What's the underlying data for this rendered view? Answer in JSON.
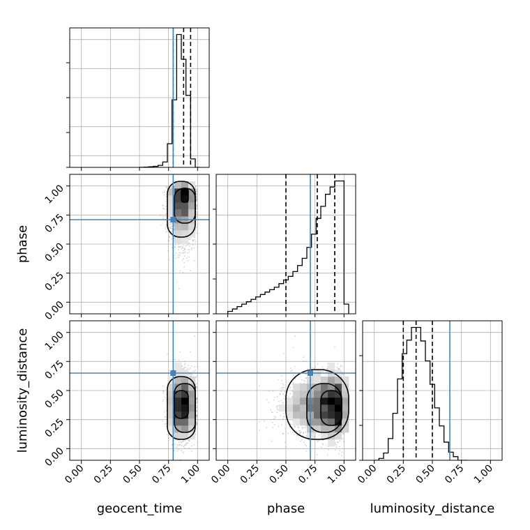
{
  "chart_data": {
    "type": "corner",
    "parameters": [
      "geocent_time",
      "phase",
      "luminosity_distance"
    ],
    "tick_labels": [
      "0.00",
      "0.25",
      "0.50",
      "0.75",
      "1.00"
    ],
    "xlim": [
      -0.1,
      1.1
    ],
    "ylim": [
      -0.1,
      1.1
    ],
    "grid": true,
    "colors": {
      "truth": "#4682b4",
      "hist": "#000000",
      "samples": "#9a9a9a",
      "quantile": "#000000"
    },
    "truths": {
      "geocent_time": 0.79,
      "phase": 0.71,
      "luminosity_distance": 0.65
    },
    "quantiles": {
      "geocent_time": [
        0.79,
        0.88,
        0.94
      ],
      "phase": [
        0.5,
        0.77,
        0.92
      ],
      "luminosity_distance": [
        0.25,
        0.36,
        0.5
      ]
    },
    "histograms": {
      "geocent_time": {
        "bin_edges": [
          0.5,
          0.54,
          0.58,
          0.62,
          0.66,
          0.7,
          0.74,
          0.78,
          0.82,
          0.86,
          0.9,
          0.94,
          0.98,
          1.02
        ],
        "counts": [
          1,
          2,
          5,
          9,
          18,
          48,
          210,
          600,
          1180,
          960,
          640,
          75,
          0
        ]
      },
      "phase": {
        "bin_edges": [
          0.0,
          0.04,
          0.08,
          0.12,
          0.16,
          0.2,
          0.24,
          0.28,
          0.32,
          0.36,
          0.4,
          0.44,
          0.48,
          0.52,
          0.56,
          0.6,
          0.64,
          0.68,
          0.72,
          0.76,
          0.8,
          0.84,
          0.88,
          0.92,
          0.96,
          1.0,
          1.04
        ],
        "counts": [
          2,
          4,
          6,
          8,
          10,
          12,
          14,
          16,
          18,
          20,
          22,
          25,
          28,
          31,
          35,
          40,
          46,
          55,
          66,
          79,
          89,
          99,
          105,
          110,
          110,
          8
        ]
      },
      "luminosity_distance": {
        "bin_edges": [
          0.0,
          0.04,
          0.08,
          0.12,
          0.16,
          0.2,
          0.24,
          0.28,
          0.32,
          0.36,
          0.4,
          0.44,
          0.48,
          0.52,
          0.56,
          0.6,
          0.64,
          0.68,
          0.72,
          0.76,
          0.8
        ],
        "counts": [
          0,
          2,
          8,
          24,
          52,
          90,
          118,
          133,
          147,
          147,
          132,
          110,
          84,
          58,
          38,
          20,
          9,
          4,
          0,
          0
        ]
      }
    },
    "scatter_panels": [
      {
        "x": "geocent_time",
        "y": "phase",
        "x_center": 0.87,
        "x_spread": 0.055,
        "y_mode": "skewed_high",
        "points": 2600
      },
      {
        "x": "geocent_time",
        "y": "luminosity_distance",
        "x_center": 0.87,
        "x_spread": 0.055,
        "y_center": 0.37,
        "y_spread": 0.14,
        "points": 2600
      },
      {
        "x": "phase",
        "y": "luminosity_distance",
        "x_mode": "skewed_high",
        "y_center": 0.37,
        "y_spread": 0.14,
        "points": 2600
      }
    ]
  }
}
